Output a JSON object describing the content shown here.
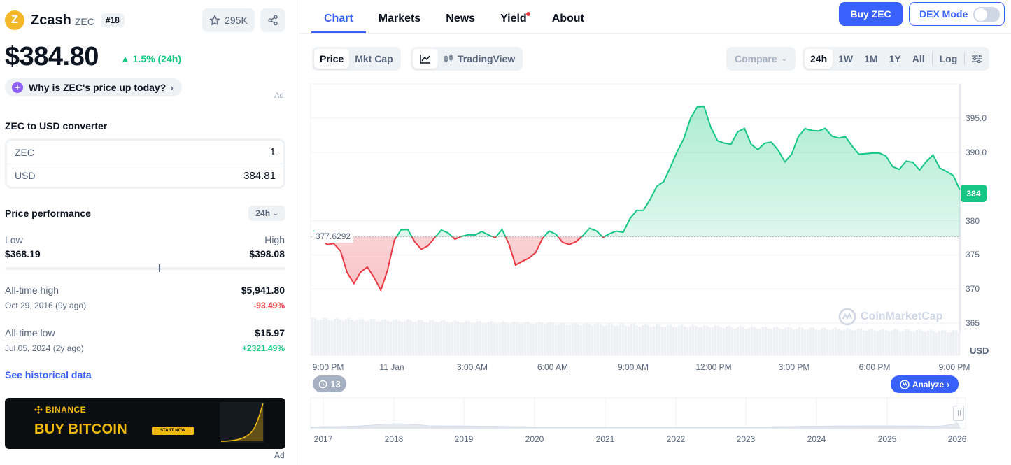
{
  "coin": {
    "name": "Zcash",
    "symbol": "ZEC",
    "rank": "#18",
    "watchlist_count": "295K",
    "logo_letter": "Z"
  },
  "price": {
    "value": "$384.80",
    "change": "1.5% (24h)"
  },
  "why_label": "Why is ZEC's price up today?",
  "ad_label": "Ad",
  "converter": {
    "title": "ZEC to USD converter",
    "from_label": "ZEC",
    "from_value": "1",
    "to_label": "USD",
    "to_value": "384.81"
  },
  "performance": {
    "title": "Price performance",
    "period": "24h",
    "low_label": "Low",
    "low_value": "$368.19",
    "high_label": "High",
    "high_value": "$398.08",
    "current_fraction": 0.55
  },
  "ath": {
    "label": "All-time high",
    "value": "$5,941.80",
    "date": "Oct 29, 2016 (9y ago)",
    "pct": "-93.49%"
  },
  "atl": {
    "label": "All-time low",
    "value": "$15.97",
    "date": "Jul 05, 2024 (2y ago)",
    "pct": "+2321.49%"
  },
  "historical_link": "See historical data",
  "banner": {
    "brand": "BINANCE",
    "headline": "BUY BITCOIN",
    "cta": "START NOW"
  },
  "tabs": [
    {
      "label": "Chart"
    },
    {
      "label": "Markets"
    },
    {
      "label": "News"
    },
    {
      "label": "Yield"
    },
    {
      "label": "About"
    }
  ],
  "buy_button": "Buy ZEC",
  "dex_mode": "DEX Mode",
  "chart_toolbar": {
    "price_tab": "Price",
    "mktcap_tab": "Mkt Cap",
    "tradingview": "TradingView",
    "compare": "Compare",
    "ranges": [
      "24h",
      "1W",
      "1M",
      "1Y",
      "All"
    ],
    "log": "Log"
  },
  "chart_overlay": {
    "currency": "USD",
    "current_badge": "384",
    "open_price_label": "377.6292",
    "events_count": "13",
    "analyze": "Analyze",
    "watermark": "CoinMarketCap"
  },
  "nav_years": [
    "2017",
    "2018",
    "2019",
    "2020",
    "2021",
    "2022",
    "2023",
    "2024",
    "2025",
    "2026"
  ],
  "colors": {
    "up": "#16c784",
    "down": "#ea3943",
    "accent": "#3861fb"
  },
  "chart_data": {
    "type": "line",
    "ylabel": "USD",
    "ylim": [
      362,
      399
    ],
    "yticks": [
      "365",
      "370",
      "375",
      "380",
      "390.0",
      "395.0"
    ],
    "xticks": [
      "9:00 PM",
      "11 Jan",
      "3:00 AM",
      "6:00 AM",
      "9:00 AM",
      "12:00 PM",
      "3:00 PM",
      "6:00 PM",
      "9:00 PM"
    ],
    "baseline": 377.6292,
    "current": 384,
    "series": [
      {
        "x": [
          0,
          0.5,
          1,
          1.5,
          2,
          2.5,
          3,
          3.5,
          4,
          4.5,
          5,
          5.5,
          6,
          6.5,
          7,
          7.5,
          8,
          8.5,
          9,
          9.5,
          10,
          10.5,
          11,
          11.5,
          12,
          12.5,
          13,
          13.5,
          14,
          14.5,
          15,
          15.5,
          16,
          16.5,
          17,
          17.5,
          18,
          18.5,
          19,
          19.5,
          20,
          20.5,
          21,
          21.5,
          22,
          22.5,
          23,
          23.5,
          24
        ],
        "values": [
          378.5,
          376.5,
          375.6,
          370.8,
          373.2,
          369.8,
          377.1,
          378.7,
          375.8,
          377.5,
          378.2,
          377.7,
          377.9,
          377.9,
          378.7,
          373.5,
          374.5,
          377.4,
          378.0,
          376.5,
          377.8,
          378.5,
          378.1,
          378.3,
          381.5,
          383.1,
          385.7,
          390.1,
          395.0,
          396.7,
          391.7,
          391.2,
          393.5,
          390.4,
          391.5,
          388.6,
          392.3,
          393.2,
          393.5,
          392.1,
          390.9,
          389.8,
          389.9,
          387.9,
          388.7,
          387.4,
          389.6,
          387.2,
          384.5
        ]
      }
    ],
    "volume_note": "volume histogram shown beneath price line"
  }
}
